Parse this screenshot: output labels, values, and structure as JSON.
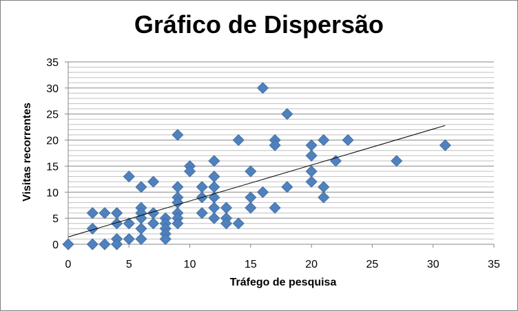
{
  "chart_data": {
    "type": "scatter",
    "title": "Gráfico de Dispersão",
    "xlabel": "Tráfego de pesquisa",
    "ylabel": "Visitas recorrentes",
    "xlim": [
      0,
      35
    ],
    "ylim": [
      0,
      35
    ],
    "x_ticks": [
      "0",
      "5",
      "10",
      "15",
      "20",
      "25",
      "30",
      "35"
    ],
    "y_ticks": [
      "0",
      "5",
      "10",
      "15",
      "20",
      "25",
      "30",
      "35"
    ],
    "grid": "horizontal major and minor",
    "marker_color": "#4f81bd",
    "trendline": {
      "type": "linear",
      "x_range": [
        0,
        31
      ],
      "y_start": 1.4,
      "y_end": 22.8
    },
    "points": [
      [
        0,
        0
      ],
      [
        2,
        6
      ],
      [
        2,
        3
      ],
      [
        2,
        0
      ],
      [
        3,
        6
      ],
      [
        3,
        0
      ],
      [
        4,
        6
      ],
      [
        4,
        4
      ],
      [
        4,
        1
      ],
      [
        4,
        0
      ],
      [
        5,
        13
      ],
      [
        5,
        4
      ],
      [
        5,
        1
      ],
      [
        6,
        11
      ],
      [
        6,
        7
      ],
      [
        6,
        6
      ],
      [
        6,
        5
      ],
      [
        6,
        3
      ],
      [
        6,
        1
      ],
      [
        7,
        12
      ],
      [
        7,
        6
      ],
      [
        7,
        4
      ],
      [
        8,
        5
      ],
      [
        8,
        4
      ],
      [
        8,
        3
      ],
      [
        8,
        2
      ],
      [
        8,
        1
      ],
      [
        9,
        21
      ],
      [
        9,
        11
      ],
      [
        9,
        9
      ],
      [
        9,
        8
      ],
      [
        9,
        6
      ],
      [
        9,
        5
      ],
      [
        9,
        4
      ],
      [
        10,
        15
      ],
      [
        10,
        14
      ],
      [
        11,
        11
      ],
      [
        11,
        9
      ],
      [
        11,
        6
      ],
      [
        12,
        16
      ],
      [
        12,
        13
      ],
      [
        12,
        11
      ],
      [
        12,
        9
      ],
      [
        12,
        7
      ],
      [
        12,
        5
      ],
      [
        13,
        7
      ],
      [
        13,
        5
      ],
      [
        13,
        4
      ],
      [
        14,
        20
      ],
      [
        14,
        4
      ],
      [
        15,
        14
      ],
      [
        15,
        9
      ],
      [
        15,
        7
      ],
      [
        16,
        30
      ],
      [
        16,
        10
      ],
      [
        17,
        20
      ],
      [
        17,
        19
      ],
      [
        17,
        7
      ],
      [
        18,
        25
      ],
      [
        18,
        11
      ],
      [
        20,
        19
      ],
      [
        20,
        17
      ],
      [
        20,
        14
      ],
      [
        20,
        12
      ],
      [
        21,
        20
      ],
      [
        21,
        11
      ],
      [
        21,
        9
      ],
      [
        22,
        16
      ],
      [
        23,
        20
      ],
      [
        27,
        16
      ],
      [
        31,
        19
      ]
    ]
  }
}
